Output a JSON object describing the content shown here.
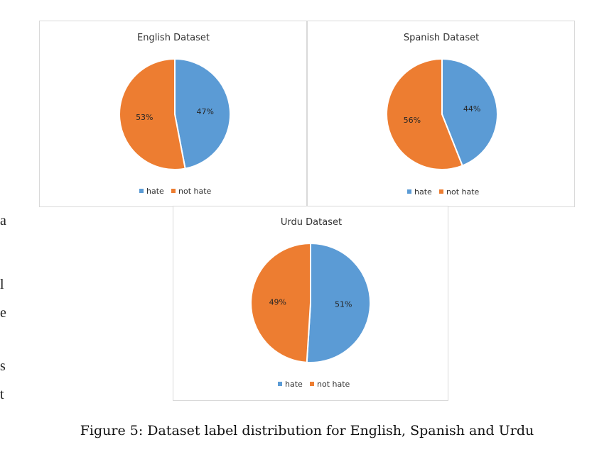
{
  "colors": {
    "hate": "#5B9BD5",
    "not_hate": "#ED7D31"
  },
  "legend": [
    "hate",
    "not hate"
  ],
  "edge_text": [
    "a",
    "l",
    "e",
    "s",
    "t"
  ],
  "caption": "Figure 5:  Dataset label distribution for English, Spanish and Urdu",
  "chart_data": [
    {
      "type": "pie",
      "title": "English Dataset",
      "labels": [
        "hate",
        "not hate"
      ],
      "values": [
        47,
        53
      ],
      "value_labels": [
        "47%",
        "53%"
      ],
      "legend": "bottom"
    },
    {
      "type": "pie",
      "title": "Spanish Dataset",
      "labels": [
        "hate",
        "not hate"
      ],
      "values": [
        44,
        56
      ],
      "value_labels": [
        "44%",
        "56%"
      ],
      "legend": "bottom"
    },
    {
      "type": "pie",
      "title": "Urdu Dataset",
      "labels": [
        "hate",
        "not hate"
      ],
      "values": [
        51,
        49
      ],
      "value_labels": [
        "51%",
        "49%"
      ],
      "legend": "bottom"
    }
  ]
}
